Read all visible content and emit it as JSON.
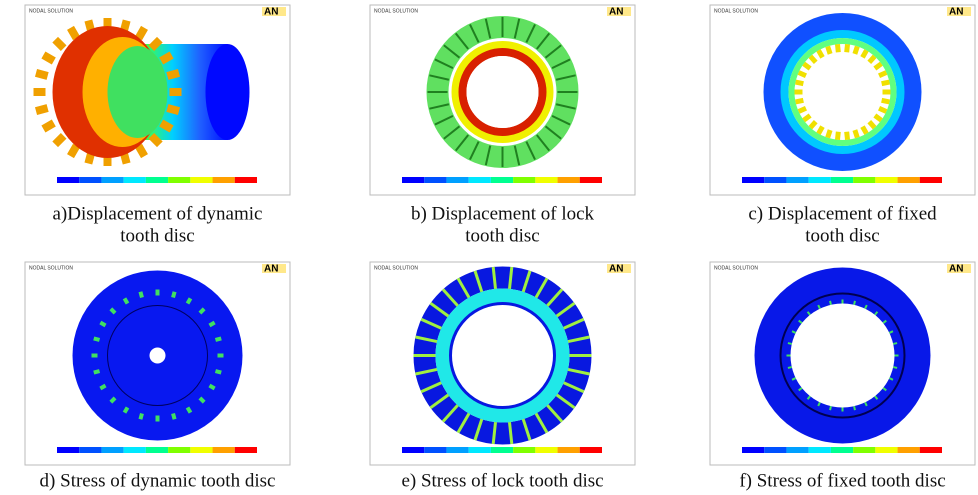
{
  "figure": {
    "panels": [
      {
        "caption": [
          "a)Displacement of dynamic",
          "tooth disc"
        ],
        "header": "NODAL SOLUTION",
        "logo": "AN"
      },
      {
        "caption": [
          "b) Displacement of lock",
          "tooth disc"
        ],
        "header": "NODAL SOLUTION",
        "logo": "AN"
      },
      {
        "caption": [
          "c) Displacement of fixed",
          "tooth disc"
        ],
        "header": "NODAL SOLUTION",
        "logo": "AN"
      },
      {
        "caption": [
          "d) Stress of dynamic tooth disc"
        ],
        "header": "NODAL SOLUTION",
        "logo": "AN"
      },
      {
        "caption": [
          "e) Stress of lock tooth disc"
        ],
        "header": "NODAL SOLUTION",
        "logo": "AN"
      },
      {
        "caption": [
          "f) Stress of fixed tooth disc"
        ],
        "header": "NODAL SOLUTION",
        "logo": "AN"
      }
    ]
  }
}
